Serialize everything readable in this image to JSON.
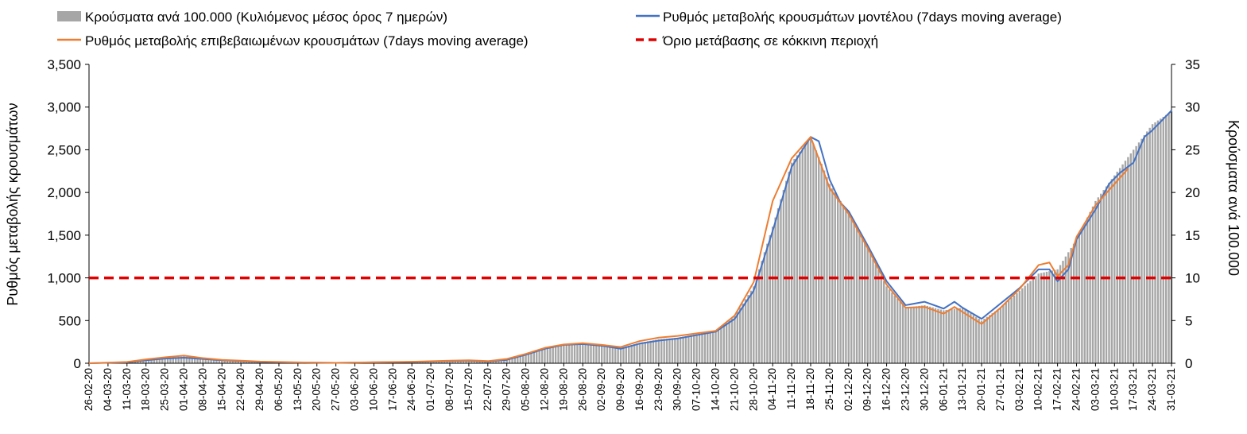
{
  "colors": {
    "bars": "#a6a6a6",
    "model_line": "#4472c4",
    "confirmed_line": "#ed7d31",
    "threshold": "#e00000",
    "axis": "#000000"
  },
  "legend": {
    "bars": "Κρούσματα ανά 100.000 (Κυλιόμενος μέσος όρος 7 ημερών)",
    "model": "Ρυθμός μεταβολής κρουσμάτων μοντέλου (7days moving average)",
    "confirmed": "Ρυθμός μεταβολής επιβεβαιωμένων κρουσμάτων (7days moving average)",
    "threshold": "Όριο μετάβασης σε κόκκινη περιοχή"
  },
  "chart_data": {
    "type": "bar",
    "ylabel_left": "Ρυθμός μεταβολής κρουσμάτων",
    "ylabel_right": "Κρούσματα ανά 100.000",
    "ylim_left": [
      0,
      3500
    ],
    "ylim_right": [
      0,
      35
    ],
    "yticks_left": [
      "0",
      "500",
      "1,000",
      "1,500",
      "2,000",
      "2,500",
      "3,000",
      "3,500"
    ],
    "yticks_right": [
      "0",
      "5",
      "10",
      "15",
      "20",
      "25",
      "30",
      "35"
    ],
    "x_start": "26-02-20",
    "x_end": "31-03-21",
    "xtick_labels": [
      "26-02-20",
      "04-03-20",
      "11-03-20",
      "18-03-20",
      "25-03-20",
      "01-04-20",
      "08-04-20",
      "15-04-20",
      "22-04-20",
      "29-04-20",
      "06-05-20",
      "13-05-20",
      "20-05-20",
      "27-05-20",
      "03-06-20",
      "10-06-20",
      "17-06-20",
      "24-06-20",
      "01-07-20",
      "08-07-20",
      "15-07-20",
      "22-07-20",
      "29-07-20",
      "05-08-20",
      "12-08-20",
      "19-08-20",
      "26-08-20",
      "02-09-20",
      "09-09-20",
      "16-09-20",
      "23-09-20",
      "30-09-20",
      "07-10-20",
      "14-10-20",
      "21-10-20",
      "28-10-20",
      "04-11-20",
      "11-11-20",
      "18-11-20",
      "25-11-20",
      "02-12-20",
      "09-12-20",
      "16-12-20",
      "23-12-20",
      "30-12-20",
      "06-01-21",
      "13-01-21",
      "20-01-21",
      "27-01-21",
      "03-02-21",
      "10-02-21",
      "17-02-21",
      "24-02-21",
      "03-03-21",
      "10-03-21",
      "17-03-21",
      "24-03-21",
      "31-03-21"
    ],
    "threshold_value": 1000,
    "series": [
      {
        "name": "Κρούσματα ανά 100.000 (Κυλιόμενος μέσος όρος 7 ημερών)",
        "axis": "right",
        "type": "bar",
        "points": [
          [
            "26-02-20",
            0
          ],
          [
            "11-03-20",
            0.2
          ],
          [
            "25-03-20",
            0.6
          ],
          [
            "01-04-20",
            0.8
          ],
          [
            "15-04-20",
            0.4
          ],
          [
            "29-04-20",
            0.2
          ],
          [
            "13-05-20",
            0.1
          ],
          [
            "27-05-20",
            0.05
          ],
          [
            "10-06-20",
            0.1
          ],
          [
            "01-07-20",
            0.2
          ],
          [
            "15-07-20",
            0.3
          ],
          [
            "22-07-20",
            0.2
          ],
          [
            "29-07-20",
            0.4
          ],
          [
            "05-08-20",
            1.0
          ],
          [
            "12-08-20",
            1.8
          ],
          [
            "19-08-20",
            2.2
          ],
          [
            "26-08-20",
            2.3
          ],
          [
            "02-09-20",
            2.1
          ],
          [
            "09-09-20",
            1.8
          ],
          [
            "16-09-20",
            2.4
          ],
          [
            "23-09-20",
            2.8
          ],
          [
            "30-09-20",
            3.0
          ],
          [
            "07-10-20",
            3.4
          ],
          [
            "14-10-20",
            3.7
          ],
          [
            "21-10-20",
            5.5
          ],
          [
            "28-10-20",
            9.0
          ],
          [
            "04-11-20",
            16.0
          ],
          [
            "11-11-20",
            23.5
          ],
          [
            "18-11-20",
            26.5
          ],
          [
            "25-11-20",
            21.0
          ],
          [
            "02-12-20",
            17.5
          ],
          [
            "09-12-20",
            13.5
          ],
          [
            "16-12-20",
            9.0
          ],
          [
            "23-12-20",
            6.5
          ],
          [
            "30-12-20",
            6.8
          ],
          [
            "06-01-21",
            6.2
          ],
          [
            "13-01-21",
            6.5
          ],
          [
            "20-01-21",
            5.0
          ],
          [
            "27-01-21",
            6.5
          ],
          [
            "03-02-21",
            8.5
          ],
          [
            "10-02-21",
            10.5
          ],
          [
            "17-02-21",
            11.0
          ],
          [
            "24-02-21",
            14.5
          ],
          [
            "03-03-21",
            19.0
          ],
          [
            "10-03-21",
            22.0
          ],
          [
            "17-03-21",
            25.0
          ],
          [
            "24-03-21",
            28.0
          ],
          [
            "31-03-21",
            29.5
          ]
        ]
      },
      {
        "name": "Ρυθμός μεταβολής κρουσμάτων μοντέλου (7days moving average)",
        "axis": "left",
        "type": "line",
        "points": [
          [
            "26-02-20",
            0
          ],
          [
            "11-03-20",
            10
          ],
          [
            "18-03-20",
            35
          ],
          [
            "25-03-20",
            55
          ],
          [
            "01-04-20",
            65
          ],
          [
            "08-04-20",
            50
          ],
          [
            "15-04-20",
            35
          ],
          [
            "22-04-20",
            25
          ],
          [
            "29-04-20",
            15
          ],
          [
            "13-05-20",
            8
          ],
          [
            "27-05-20",
            5
          ],
          [
            "10-06-20",
            10
          ],
          [
            "24-06-20",
            15
          ],
          [
            "08-07-20",
            25
          ],
          [
            "15-07-20",
            30
          ],
          [
            "22-07-20",
            20
          ],
          [
            "29-07-20",
            40
          ],
          [
            "05-08-20",
            100
          ],
          [
            "12-08-20",
            170
          ],
          [
            "19-08-20",
            215
          ],
          [
            "26-08-20",
            225
          ],
          [
            "02-09-20",
            205
          ],
          [
            "09-09-20",
            170
          ],
          [
            "16-09-20",
            230
          ],
          [
            "23-09-20",
            265
          ],
          [
            "30-09-20",
            290
          ],
          [
            "07-10-20",
            330
          ],
          [
            "14-10-20",
            370
          ],
          [
            "21-10-20",
            520
          ],
          [
            "28-10-20",
            850
          ],
          [
            "04-11-20",
            1550
          ],
          [
            "11-11-20",
            2300
          ],
          [
            "18-11-20",
            2650
          ],
          [
            "21-11-20",
            2600
          ],
          [
            "25-11-20",
            2150
          ],
          [
            "29-11-20",
            1880
          ],
          [
            "02-12-20",
            1780
          ],
          [
            "09-12-20",
            1380
          ],
          [
            "16-12-20",
            960
          ],
          [
            "23-12-20",
            680
          ],
          [
            "30-12-20",
            720
          ],
          [
            "06-01-21",
            640
          ],
          [
            "10-01-21",
            720
          ],
          [
            "13-01-21",
            650
          ],
          [
            "20-01-21",
            520
          ],
          [
            "27-01-21",
            700
          ],
          [
            "03-02-21",
            880
          ],
          [
            "10-02-21",
            1100
          ],
          [
            "14-02-21",
            1100
          ],
          [
            "17-02-21",
            960
          ],
          [
            "21-02-21",
            1100
          ],
          [
            "24-02-21",
            1450
          ],
          [
            "03-03-21",
            1800
          ],
          [
            "08-03-21",
            2100
          ],
          [
            "12-03-21",
            2230
          ],
          [
            "17-03-21",
            2350
          ],
          [
            "21-03-21",
            2650
          ],
          [
            "24-03-21",
            2730
          ],
          [
            "31-03-21",
            2960
          ]
        ]
      },
      {
        "name": "Ρυθμός μεταβολής επιβεβαιωμένων κρουσμάτων (7days moving average)",
        "axis": "left",
        "type": "line",
        "points": [
          [
            "26-02-20",
            0
          ],
          [
            "11-03-20",
            15
          ],
          [
            "18-03-20",
            45
          ],
          [
            "25-03-20",
            70
          ],
          [
            "01-04-20",
            90
          ],
          [
            "08-04-20",
            60
          ],
          [
            "15-04-20",
            40
          ],
          [
            "22-04-20",
            30
          ],
          [
            "29-04-20",
            20
          ],
          [
            "13-05-20",
            10
          ],
          [
            "27-05-20",
            5
          ],
          [
            "10-06-20",
            12
          ],
          [
            "24-06-20",
            18
          ],
          [
            "08-07-20",
            30
          ],
          [
            "15-07-20",
            35
          ],
          [
            "22-07-20",
            25
          ],
          [
            "29-07-20",
            50
          ],
          [
            "05-08-20",
            110
          ],
          [
            "12-08-20",
            180
          ],
          [
            "19-08-20",
            220
          ],
          [
            "26-08-20",
            235
          ],
          [
            "02-09-20",
            215
          ],
          [
            "09-09-20",
            190
          ],
          [
            "16-09-20",
            260
          ],
          [
            "23-09-20",
            300
          ],
          [
            "30-09-20",
            320
          ],
          [
            "07-10-20",
            350
          ],
          [
            "14-10-20",
            380
          ],
          [
            "21-10-20",
            560
          ],
          [
            "28-10-20",
            950
          ],
          [
            "04-11-20",
            1900
          ],
          [
            "11-11-20",
            2400
          ],
          [
            "18-11-20",
            2650
          ],
          [
            "25-11-20",
            2050
          ],
          [
            "02-12-20",
            1750
          ],
          [
            "09-12-20",
            1350
          ],
          [
            "16-12-20",
            920
          ],
          [
            "23-12-20",
            650
          ],
          [
            "30-12-20",
            660
          ],
          [
            "06-01-21",
            580
          ],
          [
            "10-01-21",
            660
          ],
          [
            "13-01-21",
            600
          ],
          [
            "20-01-21",
            460
          ],
          [
            "27-01-21",
            650
          ],
          [
            "03-02-21",
            870
          ],
          [
            "10-02-21",
            1150
          ],
          [
            "14-02-21",
            1180
          ],
          [
            "17-02-21",
            1020
          ],
          [
            "21-02-21",
            1150
          ],
          [
            "24-02-21",
            1480
          ],
          [
            "03-03-21",
            1850
          ],
          [
            "10-03-21",
            2100
          ],
          [
            "15-03-21",
            2280
          ]
        ]
      },
      {
        "name": "Όριο μετάβασης σε κόκκινη περιοχή",
        "axis": "left",
        "type": "line",
        "points": [
          [
            "26-02-20",
            1000
          ],
          [
            "31-03-21",
            1000
          ]
        ]
      }
    ]
  }
}
